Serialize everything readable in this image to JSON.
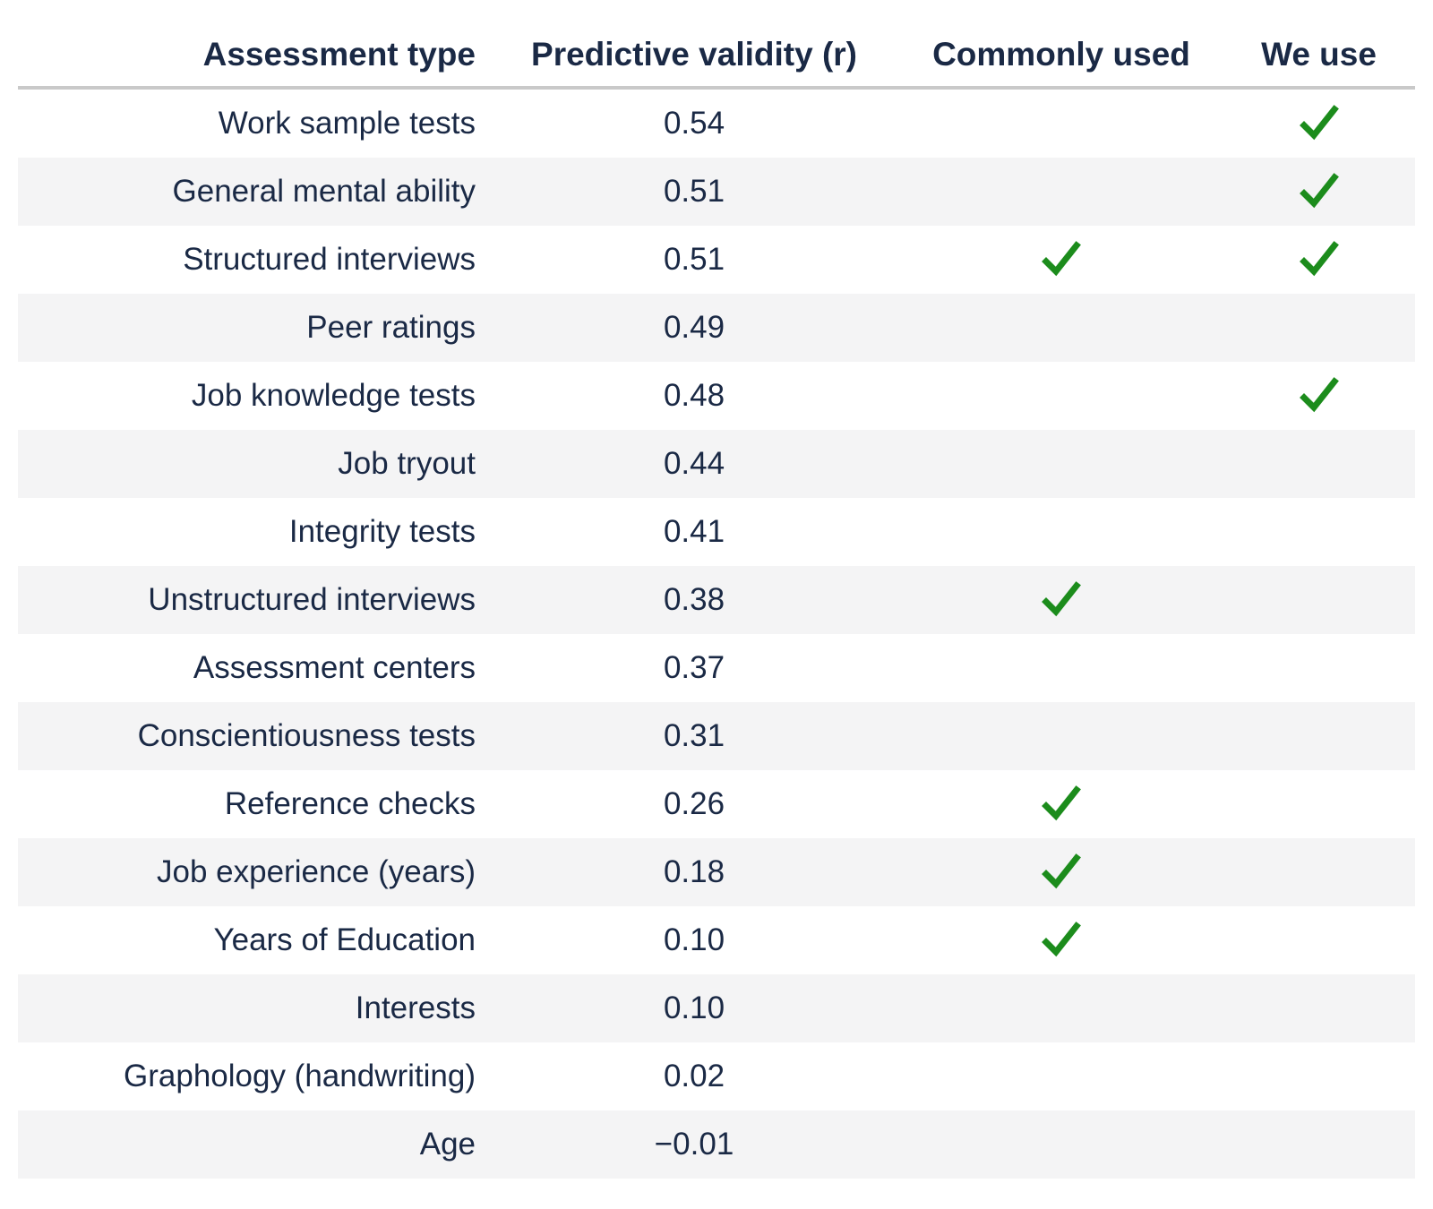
{
  "chart_data": {
    "type": "table",
    "columns": [
      "Assessment type",
      "Predictive validity (r)",
      "Commonly used",
      "We use"
    ],
    "rows": [
      {
        "type": "Work sample tests",
        "validity": "0.54",
        "commonly_used": false,
        "we_use": true
      },
      {
        "type": "General mental ability",
        "validity": "0.51",
        "commonly_used": false,
        "we_use": true
      },
      {
        "type": "Structured interviews",
        "validity": "0.51",
        "commonly_used": true,
        "we_use": true
      },
      {
        "type": "Peer ratings",
        "validity": "0.49",
        "commonly_used": false,
        "we_use": false
      },
      {
        "type": "Job knowledge tests",
        "validity": "0.48",
        "commonly_used": false,
        "we_use": true
      },
      {
        "type": "Job tryout",
        "validity": "0.44",
        "commonly_used": false,
        "we_use": false
      },
      {
        "type": "Integrity tests",
        "validity": "0.41",
        "commonly_used": false,
        "we_use": false
      },
      {
        "type": "Unstructured interviews",
        "validity": "0.38",
        "commonly_used": true,
        "we_use": false
      },
      {
        "type": "Assessment centers",
        "validity": "0.37",
        "commonly_used": false,
        "we_use": false
      },
      {
        "type": "Conscientiousness tests",
        "validity": "0.31",
        "commonly_used": false,
        "we_use": false
      },
      {
        "type": "Reference checks",
        "validity": "0.26",
        "commonly_used": true,
        "we_use": false
      },
      {
        "type": "Job experience (years)",
        "validity": "0.18",
        "commonly_used": true,
        "we_use": false
      },
      {
        "type": "Years of Education",
        "validity": "0.10",
        "commonly_used": true,
        "we_use": false
      },
      {
        "type": "Interests",
        "validity": "0.10",
        "commonly_used": false,
        "we_use": false
      },
      {
        "type": "Graphology (handwriting)",
        "validity": "0.02",
        "commonly_used": false,
        "we_use": false
      },
      {
        "type": "Age",
        "validity": "−0.01",
        "commonly_used": false,
        "we_use": false
      }
    ]
  },
  "icons": {
    "check": "check-icon"
  },
  "colors": {
    "text_navy": "#1a2945",
    "check_green": "#1c8c1c",
    "stripe_gray": "#f4f4f5",
    "rule_gray": "#c9c9c9"
  }
}
